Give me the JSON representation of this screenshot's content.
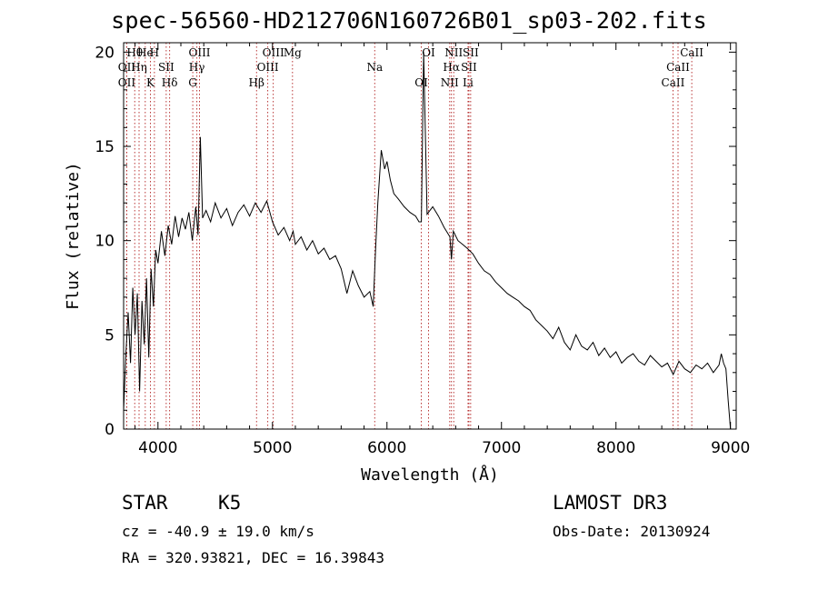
{
  "chart_data": {
    "type": "line",
    "title": "spec-56560-HD212706N160726B01_sp03-202.fits",
    "xlabel": "Wavelength (Å)",
    "ylabel": "Flux (relative)",
    "xlim": [
      3700,
      9050
    ],
    "ylim": [
      0,
      20.5
    ],
    "xticks": [
      4000,
      5000,
      6000,
      7000,
      8000,
      9000
    ],
    "yticks": [
      0,
      5,
      10,
      15,
      20
    ],
    "series": [
      {
        "name": "spectrum",
        "x": [
          3700,
          3720,
          3740,
          3760,
          3780,
          3800,
          3820,
          3840,
          3860,
          3880,
          3900,
          3920,
          3940,
          3960,
          3980,
          4000,
          4030,
          4060,
          4090,
          4120,
          4150,
          4180,
          4210,
          4240,
          4270,
          4300,
          4330,
          4350,
          4370,
          4390,
          4420,
          4460,
          4500,
          4550,
          4600,
          4650,
          4700,
          4750,
          4800,
          4850,
          4900,
          4950,
          5000,
          5050,
          5100,
          5150,
          5180,
          5200,
          5250,
          5300,
          5350,
          5400,
          5450,
          5500,
          5550,
          5600,
          5650,
          5700,
          5750,
          5800,
          5850,
          5880,
          5900,
          5920,
          5950,
          5980,
          6000,
          6030,
          6060,
          6100,
          6150,
          6200,
          6250,
          6280,
          6300,
          6320,
          6350,
          6400,
          6450,
          6500,
          6550,
          6563,
          6580,
          6620,
          6660,
          6700,
          6750,
          6800,
          6850,
          6900,
          6950,
          7000,
          7050,
          7100,
          7150,
          7200,
          7250,
          7300,
          7350,
          7400,
          7450,
          7500,
          7550,
          7600,
          7650,
          7700,
          7750,
          7800,
          7850,
          7900,
          7950,
          8000,
          8050,
          8100,
          8150,
          8200,
          8250,
          8300,
          8350,
          8400,
          8450,
          8500,
          8550,
          8600,
          8650,
          8700,
          8750,
          8800,
          8850,
          8900,
          8920,
          8940,
          8960,
          8980,
          9000
        ],
        "values": [
          1.0,
          4.0,
          6.2,
          3.5,
          7.5,
          5.0,
          7.2,
          2.0,
          6.8,
          4.5,
          8.0,
          3.8,
          8.5,
          6.5,
          9.5,
          8.8,
          10.5,
          9.2,
          10.8,
          9.8,
          11.3,
          10.2,
          11.2,
          10.6,
          11.5,
          10.0,
          11.8,
          10.3,
          15.5,
          11.2,
          11.6,
          11.0,
          12.0,
          11.2,
          11.7,
          10.8,
          11.5,
          11.9,
          11.3,
          12.0,
          11.5,
          12.1,
          11.0,
          10.3,
          10.7,
          10.0,
          10.5,
          9.8,
          10.2,
          9.5,
          10.0,
          9.3,
          9.6,
          9.0,
          9.2,
          8.5,
          7.2,
          8.4,
          7.6,
          7.0,
          7.3,
          6.5,
          9.5,
          12.0,
          14.8,
          13.8,
          14.2,
          13.2,
          12.5,
          12.2,
          11.8,
          11.5,
          11.3,
          11.0,
          11.0,
          20.0,
          11.4,
          11.8,
          11.3,
          10.7,
          10.2,
          9.0,
          10.5,
          10.0,
          9.8,
          9.6,
          9.3,
          8.8,
          8.4,
          8.2,
          7.8,
          7.5,
          7.2,
          7.0,
          6.8,
          6.5,
          6.3,
          5.8,
          5.5,
          5.2,
          4.8,
          5.4,
          4.6,
          4.2,
          5.0,
          4.4,
          4.2,
          4.6,
          3.9,
          4.3,
          3.8,
          4.1,
          3.5,
          3.8,
          4.0,
          3.6,
          3.4,
          3.9,
          3.6,
          3.3,
          3.5,
          2.9,
          3.6,
          3.2,
          3.0,
          3.4,
          3.2,
          3.5,
          3.0,
          3.4,
          4.0,
          3.5,
          3.2,
          1.5,
          0.0
        ]
      }
    ],
    "lines": [
      {
        "label": "Hθ",
        "wl": 3797
      },
      {
        "label": "OII",
        "wl": 3727
      },
      {
        "label": "OII",
        "wl": 3727
      },
      {
        "label": "He",
        "wl": 3889
      },
      {
        "label": "Hη",
        "wl": 3835
      },
      {
        "label": "K",
        "wl": 3934
      },
      {
        "label": "H",
        "wl": 3969
      },
      {
        "label": "SII",
        "wl": 4072
      },
      {
        "label": "Hδ",
        "wl": 4102
      },
      {
        "label": "OIII",
        "wl": 4363
      },
      {
        "label": "Hγ",
        "wl": 4340
      },
      {
        "label": "G",
        "wl": 4304
      },
      {
        "label": "OIII",
        "wl": 5007
      },
      {
        "label": "OIII",
        "wl": 4959
      },
      {
        "label": "Hβ",
        "wl": 4861
      },
      {
        "label": "Mg",
        "wl": 5175
      },
      {
        "label": "Na",
        "wl": 5893
      },
      {
        "label": "OI",
        "wl": 6300
      },
      {
        "label": "OI",
        "wl": 6363
      },
      {
        "label": "Hα",
        "wl": 6563
      },
      {
        "label": "NII",
        "wl": 6548
      },
      {
        "label": "NII",
        "wl": 6583
      },
      {
        "label": "SII",
        "wl": 6716
      },
      {
        "label": "Li",
        "wl": 6708
      },
      {
        "label": "SII",
        "wl": 6731
      },
      {
        "label": "CaII",
        "wl": 8542
      },
      {
        "label": "CaII",
        "wl": 8498
      },
      {
        "label": "CaII",
        "wl": 8662
      }
    ]
  },
  "info": {
    "class": "STAR",
    "subclass": "K5",
    "survey": "LAMOST DR3",
    "redshift": "cz = -40.9 ± 19.0 km/s",
    "obsdate": "Obs-Date: 20130924",
    "coords": "RA = 320.93821, DEC =  16.39843"
  }
}
